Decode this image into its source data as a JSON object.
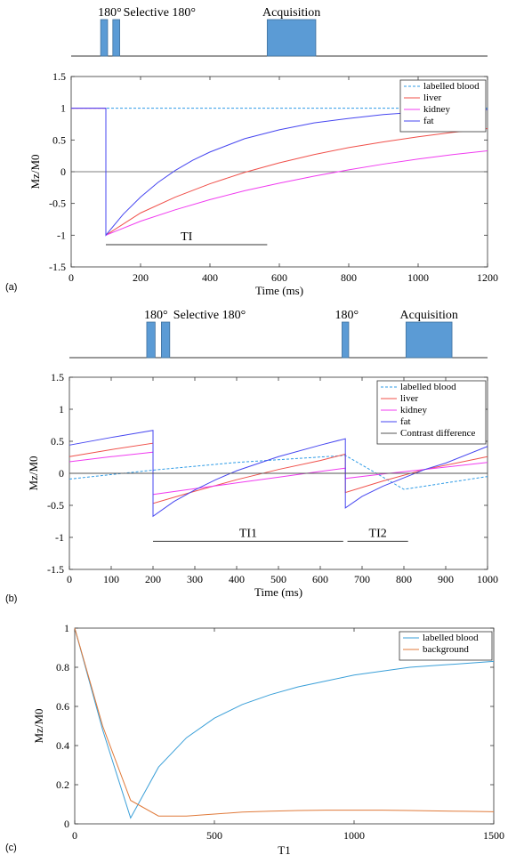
{
  "panels": [
    {
      "label": "(a)",
      "sequence": {
        "time_range": [
          0,
          1200
        ],
        "pulses": [
          {
            "name": "180-pulse",
            "start": 85,
            "end": 105,
            "label": "180°"
          },
          {
            "name": "selective-180-pulse",
            "start": 120,
            "end": 140,
            "label": "Selective 180°"
          },
          {
            "name": "acquisition-block",
            "start": 565,
            "end": 705,
            "label": "Acquisition"
          }
        ]
      },
      "chart_data": {
        "type": "line",
        "xlabel": "Time (ms)",
        "ylabel": "Mz/M0",
        "xlim": [
          0,
          1200
        ],
        "ylim": [
          -1.5,
          1.5
        ],
        "xticks": [
          0,
          200,
          400,
          600,
          800,
          1000,
          1200
        ],
        "yticks": [
          -1.5,
          -1,
          -0.5,
          0,
          0.5,
          1,
          1.5
        ],
        "legend_position": "top-right",
        "series": [
          {
            "name": "labelled blood",
            "color": "#2e9be6",
            "dash": true,
            "x": [
              0,
              1200
            ],
            "y": [
              1,
              1
            ]
          },
          {
            "name": "liver",
            "color": "#f0504a",
            "x": [
              0,
              100,
              100,
              200,
              300,
              400,
              500,
              600,
              700,
              800,
              900,
              1000,
              1100,
              1200
            ],
            "y": [
              1,
              1,
              -1,
              -0.65,
              -0.4,
              -0.19,
              -0.01,
              0.14,
              0.27,
              0.38,
              0.47,
              0.55,
              0.62,
              0.68
            ]
          },
          {
            "name": "kidney",
            "color": "#f03cf0",
            "x": [
              0,
              100,
              100,
              200,
              300,
              400,
              500,
              600,
              700,
              800,
              900,
              1000,
              1100,
              1200
            ],
            "y": [
              1,
              1,
              -1,
              -0.78,
              -0.6,
              -0.44,
              -0.3,
              -0.18,
              -0.07,
              0.03,
              0.12,
              0.2,
              0.27,
              0.33
            ]
          },
          {
            "name": "fat",
            "color": "#4646f0",
            "x": [
              0,
              100,
              100,
              150,
              200,
              250,
              300,
              350,
              400,
              500,
              600,
              700,
              800,
              900,
              1000,
              1100,
              1200
            ],
            "y": [
              1,
              1,
              -1,
              -0.67,
              -0.4,
              -0.17,
              0.02,
              0.18,
              0.31,
              0.52,
              0.66,
              0.77,
              0.84,
              0.9,
              0.94,
              0.96,
              0.98
            ]
          }
        ],
        "hlines": [
          {
            "y": 0,
            "color": "#555555"
          }
        ],
        "intervals": [
          {
            "label": "TI",
            "x1": 100,
            "x2": 565,
            "y": -1.15
          }
        ]
      }
    },
    {
      "label": "(b)",
      "sequence": {
        "time_range": [
          0,
          1000
        ],
        "pulses": [
          {
            "name": "180-pulse",
            "start": 185,
            "end": 205,
            "label": "180°"
          },
          {
            "name": "selective-180-pulse",
            "start": 220,
            "end": 240,
            "label": "Selective 180°"
          },
          {
            "name": "second-180-pulse",
            "start": 652,
            "end": 668,
            "label": "180°"
          },
          {
            "name": "acquisition-block",
            "start": 805,
            "end": 915,
            "label": "Acquisition"
          }
        ]
      },
      "chart_data": {
        "type": "line",
        "xlabel": "Time (ms)",
        "ylabel": "Mz/M0",
        "xlim": [
          0,
          1000
        ],
        "ylim": [
          -1.5,
          1.5
        ],
        "xticks": [
          0,
          100,
          200,
          300,
          400,
          500,
          600,
          700,
          800,
          900,
          1000
        ],
        "yticks": [
          -1.5,
          -1,
          -0.5,
          0,
          0.5,
          1,
          1.5
        ],
        "legend_position": "top-right",
        "series": [
          {
            "name": "labelled blood",
            "color": "#2e9be6",
            "dash": true,
            "x": [
              0,
              200,
              400,
              660,
              800,
              1000
            ],
            "y": [
              -0.09,
              0.05,
              0.17,
              0.28,
              -0.25,
              -0.05
            ]
          },
          {
            "name": "liver",
            "color": "#f0504a",
            "x": [
              0,
              100,
              200,
              200,
              300,
              400,
              500,
              600,
              660,
              660,
              750,
              850,
              1000
            ],
            "y": [
              0.26,
              0.37,
              0.47,
              -0.47,
              -0.28,
              -0.1,
              0.06,
              0.2,
              0.3,
              -0.3,
              -0.12,
              0.06,
              0.26
            ]
          },
          {
            "name": "kidney",
            "color": "#f03cf0",
            "x": [
              0,
              100,
              200,
              200,
              300,
              400,
              500,
              600,
              660,
              660,
              750,
              850,
              1000
            ],
            "y": [
              0.18,
              0.26,
              0.33,
              -0.33,
              -0.24,
              -0.15,
              -0.06,
              0.03,
              0.08,
              -0.08,
              -0.01,
              0.06,
              0.17
            ]
          },
          {
            "name": "fat",
            "color": "#4646f0",
            "x": [
              0,
              100,
              200,
              200,
              250,
              300,
              350,
              400,
              500,
              600,
              660,
              660,
              700,
              750,
              800,
              850,
              900,
              1000
            ],
            "y": [
              0.44,
              0.56,
              0.67,
              -0.67,
              -0.44,
              -0.26,
              -0.1,
              0.04,
              0.26,
              0.44,
              0.54,
              -0.54,
              -0.36,
              -0.2,
              -0.07,
              0.06,
              0.16,
              0.42
            ]
          },
          {
            "name": "Contrast difference",
            "color": "#555555",
            "dash": false,
            "x": [
              0,
              1000
            ],
            "y": [
              0,
              0
            ]
          }
        ],
        "intervals": [
          {
            "label": "TI1",
            "x1": 200,
            "x2": 655,
            "y": -1.06
          },
          {
            "label": "TI2",
            "x1": 665,
            "x2": 810,
            "y": -1.06
          }
        ]
      }
    },
    {
      "label": "(c)",
      "chart_data": {
        "type": "line",
        "xlabel": "T1",
        "ylabel": "Mz/M0",
        "xlim": [
          0,
          1500
        ],
        "ylim": [
          0,
          1
        ],
        "xticks": [
          0,
          500,
          1000,
          1500
        ],
        "yticks": [
          0,
          0.2,
          0.4,
          0.6,
          0.8,
          1
        ],
        "legend_position": "top-right",
        "series": [
          {
            "name": "labelled blood",
            "color": "#3a9fd8",
            "x": [
              0,
              100,
              200,
              300,
              400,
              500,
              600,
              700,
              800,
              900,
              1000,
              1100,
              1200,
              1300,
              1400,
              1500
            ],
            "y": [
              1,
              0.48,
              0.03,
              0.29,
              0.44,
              0.54,
              0.61,
              0.66,
              0.7,
              0.73,
              0.76,
              0.78,
              0.8,
              0.81,
              0.82,
              0.83
            ]
          },
          {
            "name": "background",
            "color": "#e07a3a",
            "x": [
              0,
              100,
              200,
              300,
              400,
              500,
              600,
              700,
              800,
              900,
              1000,
              1100,
              1200,
              1300,
              1400,
              1500
            ],
            "y": [
              1,
              0.5,
              0.12,
              0.04,
              0.04,
              0.05,
              0.06,
              0.065,
              0.068,
              0.07,
              0.07,
              0.07,
              0.068,
              0.066,
              0.064,
              0.062
            ]
          }
        ]
      }
    }
  ]
}
